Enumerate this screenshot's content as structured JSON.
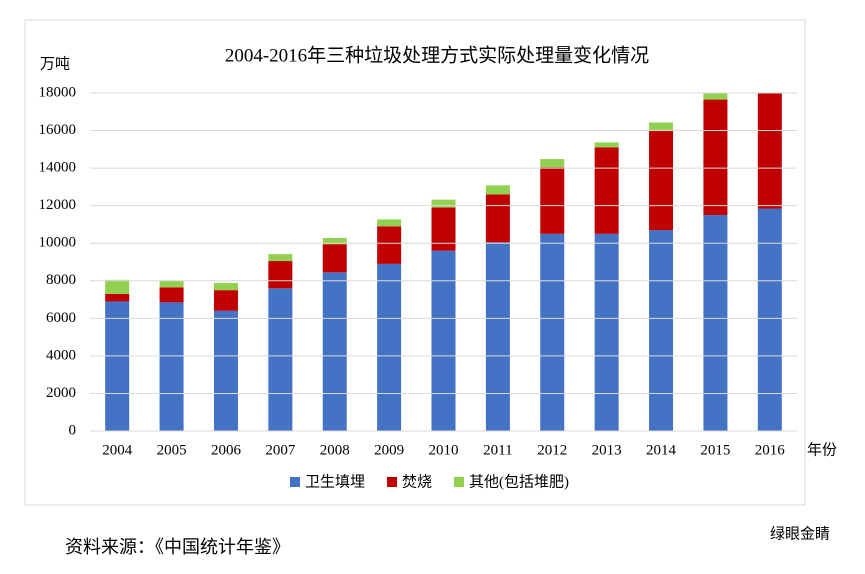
{
  "chart_data": {
    "type": "stacked-bar",
    "title": "2004-2016年三种垃圾处理方式实际处理量变化情况",
    "y_label": "万吨",
    "x_label": "年份",
    "categories": [
      "2004",
      "2005",
      "2006",
      "2007",
      "2008",
      "2009",
      "2010",
      "2011",
      "2012",
      "2013",
      "2014",
      "2015",
      "2016"
    ],
    "series": [
      {
        "name": "卫生填埋",
        "color": "#4472c4",
        "values": [
          6900,
          6850,
          6400,
          7600,
          8450,
          8900,
          9600,
          10050,
          10500,
          10500,
          10700,
          11500,
          11850
        ]
      },
      {
        "name": "焚烧",
        "color": "#c00000",
        "values": [
          400,
          800,
          1100,
          1450,
          1500,
          2000,
          2300,
          2550,
          3550,
          4600,
          5300,
          6150,
          6150
        ]
      },
      {
        "name": "其他(包括堆肥)",
        "color": "#92d050",
        "values": [
          750,
          370,
          380,
          370,
          330,
          370,
          420,
          480,
          430,
          270,
          430,
          380,
          0
        ]
      }
    ],
    "ylim": [
      0,
      18000
    ],
    "yticks": [
      0,
      2000,
      4000,
      6000,
      8000,
      10000,
      12000,
      14000,
      16000,
      18000
    ],
    "grid": true
  },
  "source": "资料来源：《中国统计年鉴》",
  "watermark": "绿眼金睛"
}
